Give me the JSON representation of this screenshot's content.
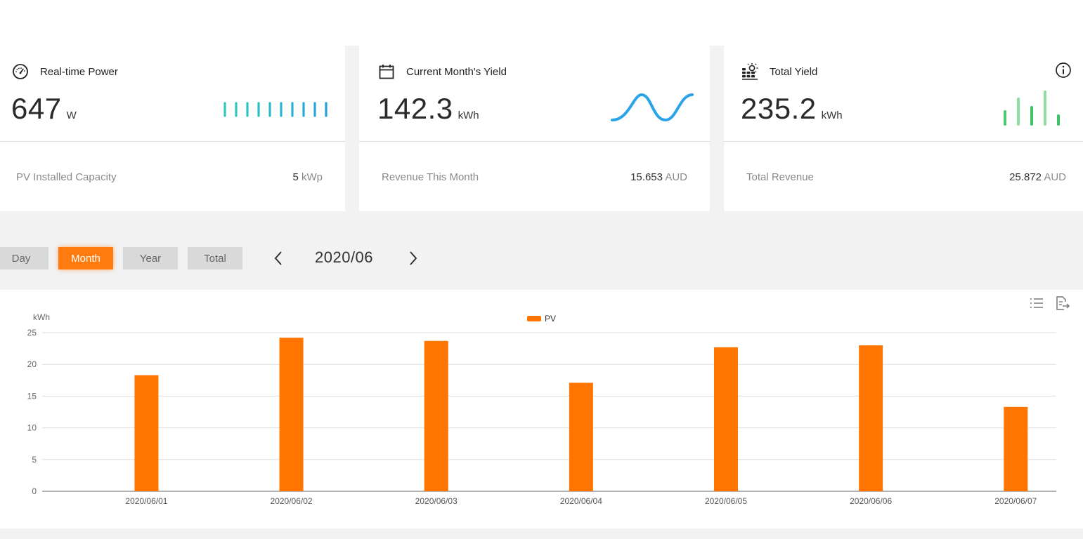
{
  "cards": {
    "realtime": {
      "title": "Real-time Power",
      "value": "647",
      "unit": "W",
      "sub_label": "PV Installed Capacity",
      "sub_value": "5",
      "sub_unit": "kWp",
      "icon": "gauge-icon"
    },
    "month": {
      "title": "Current Month's Yield",
      "value": "142.3",
      "unit": "kWh",
      "sub_label": "Revenue This Month",
      "sub_value": "15.653",
      "sub_unit": "AUD",
      "icon": "calendar-icon"
    },
    "total": {
      "title": "Total Yield",
      "value": "235.2",
      "unit": "kWh",
      "sub_label": "Total Revenue",
      "sub_value": "25.872",
      "sub_unit": "AUD",
      "icon": "solar-panel-icon",
      "info_icon": "info-icon"
    }
  },
  "period": {
    "buttons": [
      "Day",
      "Month",
      "Year",
      "Total"
    ],
    "active": "Month",
    "date": "2020/06",
    "prev_icon": "chevron-left-icon",
    "next_icon": "chevron-right-icon"
  },
  "toolbar": {
    "list_icon": "list-icon",
    "export_icon": "export-icon"
  },
  "colors": {
    "accent": "#ff7a0f",
    "bar": "#ff7500",
    "teal": "#2ec4c4",
    "blue": "#29a0e6",
    "green": "#3dc46b"
  },
  "chart_data": {
    "type": "bar",
    "ylabel": "kWh",
    "ylim": [
      0,
      25
    ],
    "yticks": [
      0,
      5,
      10,
      15,
      20,
      25
    ],
    "categories": [
      "2020/06/01",
      "2020/06/02",
      "2020/06/03",
      "2020/06/04",
      "2020/06/05",
      "2020/06/06",
      "2020/06/07"
    ],
    "series": [
      {
        "name": "PV",
        "values": [
          18.3,
          24.2,
          23.7,
          17.1,
          22.7,
          23.0,
          13.3
        ]
      }
    ],
    "legend": "top-center",
    "grid": true
  }
}
